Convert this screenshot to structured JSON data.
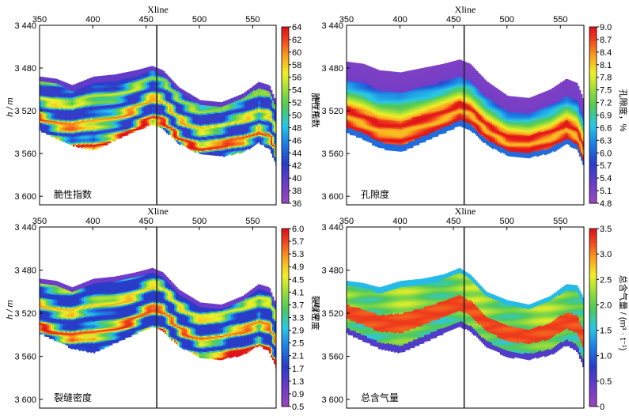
{
  "chart_data": [
    {
      "type": "heatmap",
      "label": "脆性指数",
      "colorbar_title": "脆性指数",
      "xlabel": "Xline",
      "ylabel": "h / m",
      "xlim": [
        350,
        572
      ],
      "ylim": [
        3440,
        3608
      ],
      "x_ticks": [
        "350",
        "400",
        "450",
        "500",
        "550"
      ],
      "y_ticks": [
        "3 440",
        "3 480",
        "3 520",
        "3 560",
        "3 600"
      ],
      "colorbar_ticks": [
        "64",
        "62",
        "60",
        "58",
        "56",
        "54",
        "52",
        "50",
        "48",
        "46",
        "44",
        "42",
        "40",
        "38",
        "36"
      ],
      "colorbar_range": [
        36,
        64
      ],
      "vertical_line_xline": 460,
      "top_horizon": [
        [
          350,
          3488
        ],
        [
          365,
          3490
        ],
        [
          380,
          3496
        ],
        [
          400,
          3488
        ],
        [
          420,
          3486
        ],
        [
          440,
          3482
        ],
        [
          455,
          3478
        ],
        [
          465,
          3482
        ],
        [
          480,
          3498
        ],
        [
          500,
          3510
        ],
        [
          520,
          3512
        ],
        [
          540,
          3504
        ],
        [
          555,
          3493
        ],
        [
          565,
          3496
        ],
        [
          572,
          3514
        ]
      ],
      "bottom_horizon": [
        [
          350,
          3538
        ],
        [
          365,
          3545
        ],
        [
          380,
          3552
        ],
        [
          400,
          3556
        ],
        [
          420,
          3547
        ],
        [
          440,
          3538
        ],
        [
          455,
          3532
        ],
        [
          465,
          3536
        ],
        [
          480,
          3550
        ],
        [
          500,
          3560
        ],
        [
          520,
          3562
        ],
        [
          540,
          3558
        ],
        [
          555,
          3549
        ],
        [
          565,
          3555
        ],
        [
          572,
          3572
        ]
      ]
    },
    {
      "type": "heatmap",
      "label": "孔隙度",
      "colorbar_title": "孔隙度，%",
      "xlabel": "Xline",
      "ylabel": "h / m",
      "xlim": [
        350,
        572
      ],
      "ylim": [
        3440,
        3608
      ],
      "x_ticks": [
        "350",
        "400",
        "450",
        "500",
        "550"
      ],
      "y_ticks": [
        "3 440",
        "3 480",
        "3 520",
        "3 560",
        "3 600"
      ],
      "colorbar_ticks": [
        "9.0",
        "8.7",
        "8.4",
        "8.1",
        "7.8",
        "7.5",
        "7.2",
        "6.9",
        "6.6",
        "6.3",
        "6.0",
        "5.7",
        "5.4",
        "5.1",
        "4.8"
      ],
      "colorbar_range": [
        4.8,
        9.0
      ],
      "vertical_line_xline": 460,
      "top_horizon": [
        [
          350,
          3474
        ],
        [
          365,
          3476
        ],
        [
          380,
          3482
        ],
        [
          400,
          3484
        ],
        [
          420,
          3480
        ],
        [
          440,
          3476
        ],
        [
          455,
          3472
        ],
        [
          465,
          3476
        ],
        [
          480,
          3492
        ],
        [
          500,
          3506
        ],
        [
          520,
          3508
        ],
        [
          540,
          3500
        ],
        [
          555,
          3490
        ],
        [
          565,
          3494
        ],
        [
          572,
          3512
        ]
      ],
      "bottom_horizon": [
        [
          350,
          3540
        ],
        [
          365,
          3546
        ],
        [
          380,
          3554
        ],
        [
          400,
          3558
        ],
        [
          420,
          3549
        ],
        [
          440,
          3540
        ],
        [
          455,
          3533
        ],
        [
          465,
          3537
        ],
        [
          480,
          3551
        ],
        [
          500,
          3561
        ],
        [
          520,
          3563
        ],
        [
          540,
          3559
        ],
        [
          555,
          3550
        ],
        [
          565,
          3556
        ],
        [
          572,
          3574
        ]
      ]
    },
    {
      "type": "heatmap",
      "label": "裂缝密度",
      "colorbar_title": "裂缝密度",
      "xlabel": "Xline",
      "ylabel": "h / m",
      "xlim": [
        350,
        572
      ],
      "ylim": [
        3440,
        3608
      ],
      "x_ticks": [
        "350",
        "400",
        "450",
        "500",
        "550"
      ],
      "y_ticks": [
        "3 440",
        "3 480",
        "3 520",
        "3 560",
        "3 600"
      ],
      "colorbar_ticks": [
        "6.0",
        "5.7",
        "5.3",
        "4.9",
        "4.5",
        "4.1",
        "3.7",
        "3.3",
        "2.9",
        "2.5",
        "2.1",
        "1.7",
        "1.3",
        "0.9",
        "0.5"
      ],
      "colorbar_range": [
        0.5,
        6.0
      ],
      "vertical_line_xline": 460,
      "top_horizon": [
        [
          350,
          3488
        ],
        [
          365,
          3490
        ],
        [
          380,
          3496
        ],
        [
          400,
          3488
        ],
        [
          420,
          3486
        ],
        [
          440,
          3482
        ],
        [
          455,
          3478
        ],
        [
          465,
          3482
        ],
        [
          480,
          3498
        ],
        [
          500,
          3510
        ],
        [
          520,
          3512
        ],
        [
          540,
          3504
        ],
        [
          555,
          3493
        ],
        [
          565,
          3496
        ],
        [
          572,
          3514
        ]
      ],
      "bottom_horizon": [
        [
          350,
          3538
        ],
        [
          365,
          3545
        ],
        [
          380,
          3552
        ],
        [
          400,
          3556
        ],
        [
          420,
          3547
        ],
        [
          440,
          3538
        ],
        [
          455,
          3532
        ],
        [
          465,
          3536
        ],
        [
          480,
          3550
        ],
        [
          500,
          3560
        ],
        [
          520,
          3562
        ],
        [
          540,
          3558
        ],
        [
          555,
          3549
        ],
        [
          565,
          3555
        ],
        [
          572,
          3572
        ]
      ]
    },
    {
      "type": "heatmap",
      "label": "总含气量",
      "colorbar_title": "总含气量 / (m³ · t⁻¹)",
      "xlabel": "Xline",
      "ylabel": "h / m",
      "xlim": [
        350,
        572
      ],
      "ylim": [
        3440,
        3608
      ],
      "x_ticks": [
        "350",
        "400",
        "450",
        "500",
        "550"
      ],
      "y_ticks": [
        "3 440",
        "3 480",
        "3 520",
        "3 560",
        "3 600"
      ],
      "colorbar_ticks": [
        "3.5",
        "3.0",
        "2.5",
        "2.0",
        "1.5",
        "1.0",
        "0.5",
        "0"
      ],
      "colorbar_range": [
        0,
        3.5
      ],
      "vertical_line_xline": 460,
      "top_horizon": [
        [
          350,
          3490
        ],
        [
          365,
          3492
        ],
        [
          380,
          3496
        ],
        [
          400,
          3490
        ],
        [
          420,
          3488
        ],
        [
          440,
          3484
        ],
        [
          455,
          3478
        ],
        [
          465,
          3484
        ],
        [
          480,
          3500
        ],
        [
          500,
          3508
        ],
        [
          520,
          3512
        ],
        [
          540,
          3504
        ],
        [
          555,
          3493
        ],
        [
          565,
          3494
        ],
        [
          572,
          3508
        ]
      ],
      "bottom_horizon": [
        [
          350,
          3538
        ],
        [
          365,
          3545
        ],
        [
          380,
          3552
        ],
        [
          400,
          3556
        ],
        [
          420,
          3547
        ],
        [
          440,
          3538
        ],
        [
          455,
          3532
        ],
        [
          465,
          3536
        ],
        [
          480,
          3550
        ],
        [
          500,
          3560
        ],
        [
          520,
          3562
        ],
        [
          540,
          3558
        ],
        [
          555,
          3549
        ],
        [
          565,
          3555
        ],
        [
          572,
          3572
        ]
      ]
    }
  ]
}
